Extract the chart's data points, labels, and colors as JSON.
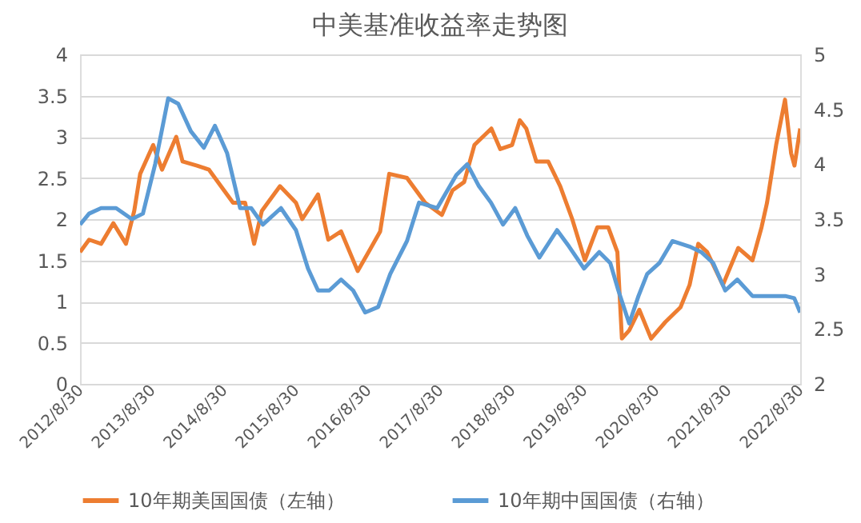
{
  "chart_data": {
    "type": "line",
    "title": "中美基准收益率走势图",
    "xlim": [
      "2012-08-30",
      "2022-08-30"
    ],
    "xticks": [
      {
        "value": "2012-08-30",
        "label": "2012/8/30"
      },
      {
        "value": "2013-08-30",
        "label": "2013/8/30"
      },
      {
        "value": "2014-08-30",
        "label": "2014/8/30"
      },
      {
        "value": "2015-08-30",
        "label": "2015/8/30"
      },
      {
        "value": "2016-08-30",
        "label": "2016/8/30"
      },
      {
        "value": "2017-08-30",
        "label": "2017/8/30"
      },
      {
        "value": "2018-08-30",
        "label": "2018/8/30"
      },
      {
        "value": "2019-08-30",
        "label": "2019/8/30"
      },
      {
        "value": "2020-08-30",
        "label": "2020/8/30"
      },
      {
        "value": "2021-08-30",
        "label": "2021/8/30"
      },
      {
        "value": "2022-08-30",
        "label": "2022/8/30"
      }
    ],
    "ylim": [
      0,
      4
    ],
    "yticks": [
      0,
      0.5,
      1,
      1.5,
      2,
      2.5,
      3,
      3.5,
      4
    ],
    "y2lim": [
      2,
      5
    ],
    "y2ticks": [
      2,
      2.5,
      3,
      3.5,
      4,
      4.5,
      5
    ],
    "grid": "y",
    "legend": "bottom",
    "marker": "none",
    "line_style": "solid",
    "series": [
      {
        "name": "10年期美国国债（左轴）",
        "color": "#ed7d31",
        "x": [
          "2012-08-30",
          "2012-10-15",
          "2012-12-15",
          "2013-02-15",
          "2013-04-20",
          "2013-06-01",
          "2013-07-01",
          "2013-09-05",
          "2013-10-20",
          "2013-12-31",
          "2014-02-01",
          "2014-04-15",
          "2014-06-15",
          "2014-08-30",
          "2014-10-15",
          "2014-12-15",
          "2015-01-30",
          "2015-03-10",
          "2015-06-10",
          "2015-08-30",
          "2015-10-01",
          "2015-12-20",
          "2016-02-10",
          "2016-04-15",
          "2016-07-08",
          "2016-09-01",
          "2016-10-30",
          "2016-12-15",
          "2017-03-15",
          "2017-06-15",
          "2017-09-08",
          "2017-11-01",
          "2017-12-30",
          "2018-02-20",
          "2018-05-17",
          "2018-07-01",
          "2018-08-30",
          "2018-10-08",
          "2018-11-10",
          "2018-12-31",
          "2019-03-01",
          "2019-05-01",
          "2019-07-01",
          "2019-09-03",
          "2019-11-05",
          "2019-12-31",
          "2020-02-15",
          "2020-03-09",
          "2020-04-15",
          "2020-06-05",
          "2020-08-04",
          "2020-10-15",
          "2020-12-31",
          "2021-02-15",
          "2021-03-31",
          "2021-05-15",
          "2021-08-03",
          "2021-10-20",
          "2021-12-31",
          "2022-02-15",
          "2022-03-15",
          "2022-04-30",
          "2022-06-14",
          "2022-07-15",
          "2022-08-01",
          "2022-08-30"
        ],
        "values": [
          1.6,
          1.75,
          1.7,
          1.95,
          1.7,
          2.1,
          2.55,
          2.9,
          2.6,
          3.0,
          2.7,
          2.65,
          2.6,
          2.35,
          2.2,
          2.2,
          1.7,
          2.1,
          2.4,
          2.2,
          2.0,
          2.3,
          1.75,
          1.85,
          1.37,
          1.6,
          1.85,
          2.55,
          2.5,
          2.2,
          2.05,
          2.35,
          2.45,
          2.9,
          3.1,
          2.85,
          2.9,
          3.2,
          3.1,
          2.7,
          2.7,
          2.4,
          2.0,
          1.5,
          1.9,
          1.9,
          1.6,
          0.55,
          0.65,
          0.9,
          0.55,
          0.75,
          0.93,
          1.2,
          1.7,
          1.6,
          1.2,
          1.65,
          1.5,
          1.9,
          2.2,
          2.9,
          3.45,
          2.8,
          2.65,
          3.1
        ]
      },
      {
        "name": "10年期中国国债（右轴）",
        "color": "#5b9bd5",
        "axis": "y2",
        "x": [
          "2012-08-30",
          "2012-10-15",
          "2012-12-15",
          "2013-03-01",
          "2013-05-20",
          "2013-07-15",
          "2013-09-15",
          "2013-11-20",
          "2014-01-10",
          "2014-03-15",
          "2014-05-20",
          "2014-07-15",
          "2014-09-15",
          "2014-11-20",
          "2015-01-15",
          "2015-03-15",
          "2015-06-15",
          "2015-08-30",
          "2015-10-30",
          "2015-12-20",
          "2016-02-15",
          "2016-04-15",
          "2016-06-15",
          "2016-08-15",
          "2016-10-20",
          "2016-12-20",
          "2017-03-15",
          "2017-05-15",
          "2017-08-15",
          "2017-11-20",
          "2018-01-15",
          "2018-03-15",
          "2018-05-15",
          "2018-07-15",
          "2018-09-15",
          "2018-11-15",
          "2019-01-15",
          "2019-04-15",
          "2019-06-15",
          "2019-08-30",
          "2019-11-15",
          "2020-01-10",
          "2020-02-20",
          "2020-04-15",
          "2020-06-01",
          "2020-07-15",
          "2020-09-15",
          "2020-11-20",
          "2021-02-15",
          "2021-04-15",
          "2021-06-15",
          "2021-08-15",
          "2021-10-15",
          "2021-12-31",
          "2022-02-15",
          "2022-04-15",
          "2022-06-15",
          "2022-07-31",
          "2022-08-30"
        ],
        "values": [
          3.45,
          3.55,
          3.6,
          3.6,
          3.5,
          3.55,
          4.0,
          4.6,
          4.55,
          4.3,
          4.15,
          4.35,
          4.1,
          3.6,
          3.6,
          3.45,
          3.6,
          3.4,
          3.05,
          2.85,
          2.85,
          2.95,
          2.85,
          2.65,
          2.7,
          3.0,
          3.3,
          3.65,
          3.6,
          3.9,
          4.0,
          3.8,
          3.65,
          3.45,
          3.6,
          3.35,
          3.15,
          3.4,
          3.25,
          3.05,
          3.2,
          3.1,
          2.85,
          2.55,
          2.8,
          3.0,
          3.1,
          3.3,
          3.25,
          3.2,
          3.1,
          2.85,
          2.95,
          2.8,
          2.8,
          2.8,
          2.8,
          2.78,
          2.65
        ]
      }
    ]
  }
}
